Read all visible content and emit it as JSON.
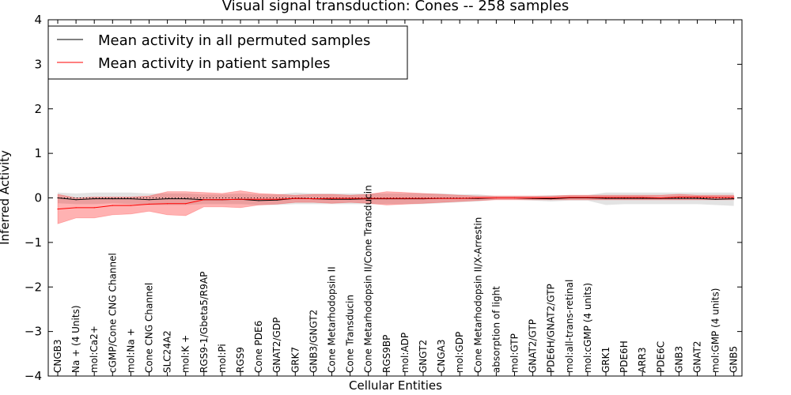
{
  "chart_data": {
    "type": "line",
    "title": "Visual signal transduction: Cones -- 258 samples",
    "xlabel": "Cellular Entities",
    "ylabel": "Inferred Activity",
    "ylim": [
      -4,
      4
    ],
    "yticks": [
      4,
      3,
      2,
      1,
      0,
      -1,
      -2,
      -3,
      -4
    ],
    "ytick_labels": [
      "4",
      "3",
      "2",
      "1",
      "0",
      "−1",
      "−2",
      "−3",
      "−4"
    ],
    "legend_position": "upper-left",
    "categories": [
      "CNGB3",
      "Na + (4 Units)",
      "mol:Ca2+",
      "cGMP/Cone CNG Channel",
      "mol:Na +",
      "Cone CNG Channel",
      "SLC24A2",
      "mol:K +",
      "RGS9-1/Gbeta5/R9AP",
      "mol:Pi",
      "RGS9",
      "Cone PDE6",
      "GNAT2/GDP",
      "GRK7",
      "GNB3/GNGT2",
      "Cone Metarhodopsin II",
      "Cone Transducin",
      "Cone Metarhodopsin II/Cone Transducin",
      "RGS9BP",
      "mol:ADP",
      "GNGT2",
      "CNGA3",
      "mol:GDP",
      "Cone Metarhodopsin II/X-Arrestin",
      "absorption of light",
      "mol:GTP",
      "GNAT2/GTP",
      "PDE6H/GNAT2/GTP",
      "mol:all-trans-retinal",
      "mol:cGMP (4 units)",
      "GRK1",
      "PDE6H",
      "ARR3",
      "PDE6C",
      "GNB3",
      "GNAT2",
      "mol:GMP (4 units)",
      "GNB5"
    ],
    "series": [
      {
        "name": "Mean activity in all permuted samples",
        "color": "#000000",
        "values": [
          0.0,
          -0.04,
          -0.02,
          -0.02,
          -0.02,
          -0.04,
          -0.02,
          -0.02,
          -0.04,
          -0.04,
          -0.03,
          -0.06,
          -0.05,
          -0.01,
          -0.02,
          -0.03,
          -0.03,
          -0.02,
          -0.02,
          -0.02,
          -0.02,
          -0.01,
          -0.01,
          -0.01,
          0.0,
          0.0,
          -0.01,
          -0.02,
          0.0,
          0.0,
          -0.01,
          -0.01,
          -0.01,
          -0.01,
          -0.01,
          -0.01,
          -0.03,
          -0.02
        ],
        "band_low": [
          -0.12,
          -0.14,
          -0.14,
          -0.12,
          -0.14,
          -0.16,
          -0.16,
          -0.16,
          -0.14,
          -0.14,
          -0.14,
          -0.16,
          -0.16,
          -0.14,
          -0.14,
          -0.14,
          -0.14,
          -0.14,
          -0.14,
          -0.14,
          -0.14,
          -0.12,
          -0.1,
          -0.08,
          -0.04,
          -0.04,
          -0.06,
          -0.08,
          -0.06,
          -0.06,
          -0.16,
          -0.14,
          -0.14,
          -0.14,
          -0.14,
          -0.14,
          -0.16,
          -0.18
        ],
        "band_high": [
          0.12,
          0.1,
          0.12,
          0.12,
          0.12,
          0.1,
          0.1,
          0.1,
          0.08,
          0.08,
          0.1,
          0.08,
          0.08,
          0.12,
          0.1,
          0.1,
          0.1,
          0.1,
          0.1,
          0.1,
          0.1,
          0.1,
          0.08,
          0.08,
          0.04,
          0.04,
          0.04,
          0.06,
          0.06,
          0.06,
          0.12,
          0.12,
          0.12,
          0.12,
          0.12,
          0.12,
          0.12,
          0.12
        ],
        "band_color": "#d9d9d9"
      },
      {
        "name": "Mean activity in patient samples",
        "color": "#ff0000",
        "values": [
          -0.25,
          -0.22,
          -0.22,
          -0.17,
          -0.17,
          -0.14,
          -0.13,
          -0.13,
          -0.04,
          -0.04,
          -0.03,
          -0.03,
          -0.03,
          -0.01,
          -0.02,
          -0.01,
          -0.01,
          -0.01,
          -0.01,
          -0.01,
          -0.01,
          -0.01,
          -0.01,
          0.0,
          0.0,
          0.0,
          0.0,
          0.0,
          0.01,
          0.01,
          0.01,
          0.01,
          0.01,
          0.0,
          0.02,
          0.02,
          0.01,
          0.01
        ],
        "band_low": [
          -0.58,
          -0.45,
          -0.45,
          -0.38,
          -0.36,
          -0.3,
          -0.38,
          -0.4,
          -0.2,
          -0.2,
          -0.22,
          -0.16,
          -0.14,
          -0.1,
          -0.1,
          -0.12,
          -0.1,
          -0.12,
          -0.16,
          -0.14,
          -0.12,
          -0.1,
          -0.08,
          -0.06,
          -0.04,
          -0.04,
          -0.04,
          -0.04,
          -0.04,
          -0.04,
          -0.04,
          -0.04,
          -0.04,
          -0.04,
          -0.04,
          -0.04,
          -0.04,
          -0.04
        ],
        "band_high": [
          0.08,
          0.0,
          0.02,
          0.02,
          0.02,
          0.04,
          0.14,
          0.14,
          0.12,
          0.1,
          0.16,
          0.1,
          0.08,
          0.06,
          0.08,
          0.08,
          0.06,
          0.08,
          0.14,
          0.12,
          0.1,
          0.08,
          0.06,
          0.04,
          0.04,
          0.04,
          0.04,
          0.04,
          0.06,
          0.06,
          0.06,
          0.06,
          0.06,
          0.06,
          0.08,
          0.06,
          0.06,
          0.06
        ],
        "band_color": "#ff0000"
      }
    ],
    "zero_line": {
      "value": 0,
      "style": "dotted",
      "color": "#000000"
    }
  }
}
